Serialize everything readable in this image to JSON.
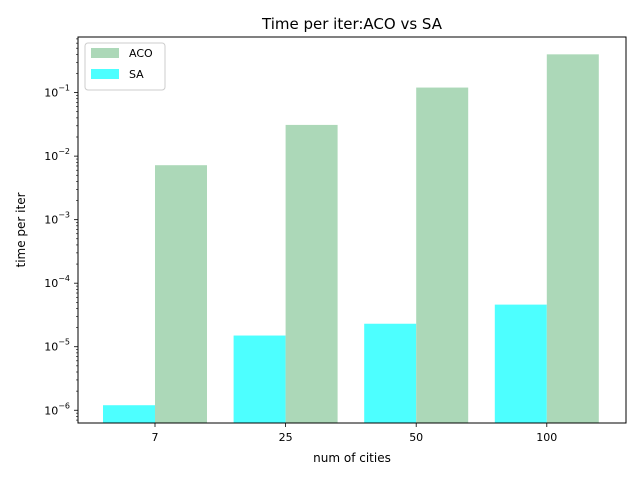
{
  "chart_data": {
    "type": "bar",
    "title": "Time per iter:ACO vs SA",
    "xlabel": "num of cities",
    "ylabel": "time per iter",
    "yscale": "log",
    "ylim": [
      6.3e-07,
      0.75
    ],
    "categories": [
      "7",
      "25",
      "50",
      "100"
    ],
    "series": [
      {
        "name": "SA",
        "color": "#4dffff",
        "values": [
          1.2e-06,
          1.5e-05,
          2.3e-05,
          4.6e-05
        ]
      },
      {
        "name": "ACO",
        "color": "#acd8b8",
        "values": [
          0.0072,
          0.031,
          0.12,
          0.4
        ]
      }
    ],
    "legend_order": [
      "ACO",
      "SA"
    ],
    "y_ticks": [
      {
        "value": 1e-06,
        "base": "10",
        "exp": "−6"
      },
      {
        "value": 1e-05,
        "base": "10",
        "exp": "−5"
      },
      {
        "value": 0.0001,
        "base": "10",
        "exp": "−4"
      },
      {
        "value": 0.001,
        "base": "10",
        "exp": "−3"
      },
      {
        "value": 0.01,
        "base": "10",
        "exp": "−2"
      },
      {
        "value": 0.1,
        "base": "10",
        "exp": "−1"
      }
    ],
    "grid": false,
    "legend_position": "top-left"
  }
}
